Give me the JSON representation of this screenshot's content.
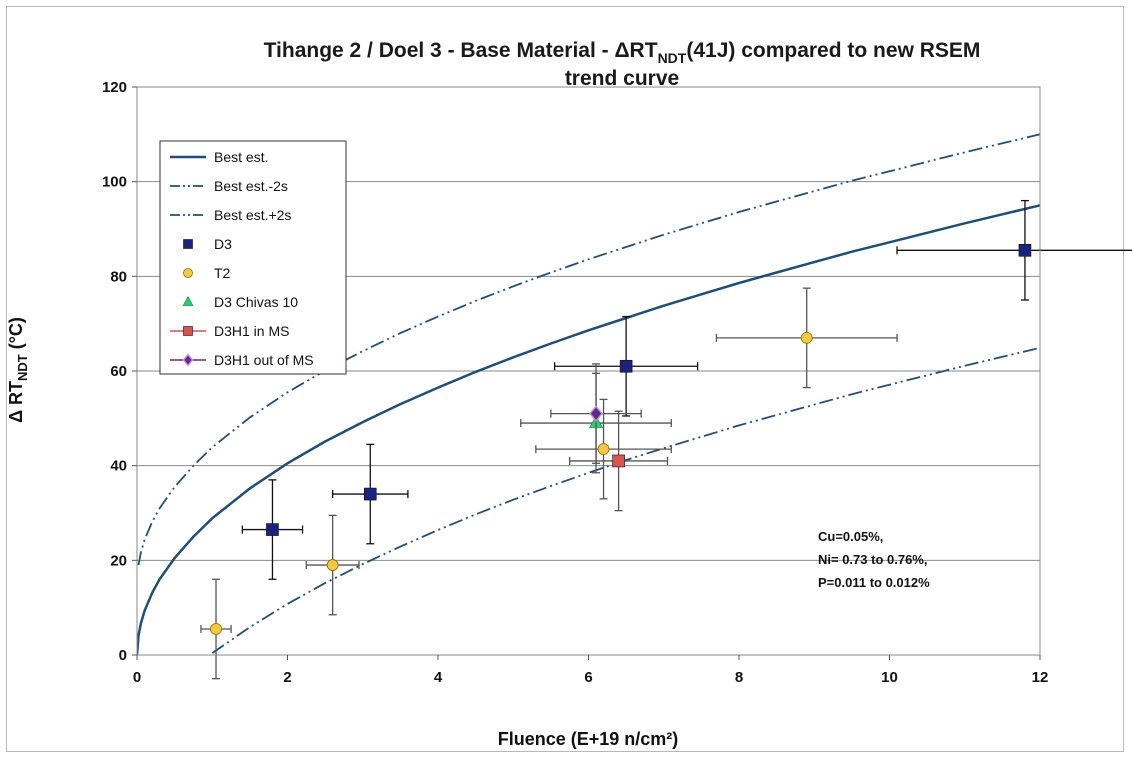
{
  "chart_data": {
    "type": "scatter",
    "title": {
      "prefix": "Tihange 2 / Doel 3 - Base Material - ΔRT",
      "sub": "NDT",
      "suffix": "(41J) compared to new RSEM",
      "line2": "trend curve"
    },
    "xlabel": "Fluence (E+19 n/cm²)",
    "ylabel": {
      "prefix": "Δ RT",
      "sub": "NDT",
      "suffix": " (°C)"
    },
    "xlim": [
      0,
      12
    ],
    "ylim": [
      0,
      120
    ],
    "xticks": [
      0,
      2,
      4,
      6,
      8,
      10,
      12
    ],
    "yticks": [
      0,
      20,
      40,
      60,
      80,
      100,
      120
    ],
    "grid": "horizontal",
    "legend_position": "top-left",
    "colors": {
      "curve": "#1f4e79",
      "D3": "#1a237e",
      "T2": "#f5c842",
      "D3 Chivas 10": "#2ecc71",
      "D3H1 in MS": "#d9534f",
      "D3H1 out of MS": "#5b2d8e"
    },
    "curves": [
      {
        "name": "Best est.",
        "style": "solid",
        "points": [
          [
            0,
            0
          ],
          [
            0.02,
            4.1
          ],
          [
            0.05,
            6.6
          ],
          [
            0.1,
            9.3
          ],
          [
            0.2,
            13.1
          ],
          [
            0.3,
            16.0
          ],
          [
            0.5,
            20.5
          ],
          [
            0.75,
            25.0
          ],
          [
            1,
            28.9
          ],
          [
            1.5,
            35.2
          ],
          [
            2,
            40.5
          ],
          [
            2.5,
            45.1
          ],
          [
            3,
            49.2
          ],
          [
            3.5,
            53.0
          ],
          [
            4,
            56.5
          ],
          [
            4.5,
            59.8
          ],
          [
            5,
            62.9
          ],
          [
            5.5,
            65.8
          ],
          [
            6,
            68.6
          ],
          [
            6.5,
            71.2
          ],
          [
            7,
            73.8
          ],
          [
            7.5,
            76.2
          ],
          [
            8,
            78.6
          ],
          [
            8.5,
            80.8
          ],
          [
            9,
            83.0
          ],
          [
            9.5,
            85.2
          ],
          [
            10,
            87.2
          ],
          [
            10.5,
            89.2
          ],
          [
            11,
            91.2
          ],
          [
            11.5,
            93.1
          ],
          [
            12,
            95.0
          ]
        ]
      },
      {
        "name": "Best est.-2s",
        "style": "dash-dot-dot",
        "points": [
          [
            1,
            0.4
          ],
          [
            1.5,
            5.9
          ],
          [
            2,
            10.8
          ],
          [
            2.5,
            15.2
          ],
          [
            3,
            19.2
          ],
          [
            3.5,
            22.9
          ],
          [
            4,
            26.4
          ],
          [
            4.5,
            29.7
          ],
          [
            5,
            32.8
          ],
          [
            5.5,
            35.7
          ],
          [
            6,
            38.5
          ],
          [
            6.5,
            41.2
          ],
          [
            7,
            43.7
          ],
          [
            7.5,
            46.1
          ],
          [
            8,
            48.5
          ],
          [
            8.5,
            50.7
          ],
          [
            9,
            52.9
          ],
          [
            9.5,
            55.1
          ],
          [
            10,
            57.1
          ],
          [
            10.5,
            59.1
          ],
          [
            11,
            61.1
          ],
          [
            11.5,
            63.0
          ],
          [
            12,
            64.9
          ]
        ]
      },
      {
        "name": "Best est.+2s",
        "style": "dash-dot-dot",
        "points": [
          [
            0.02,
            19.0
          ],
          [
            0.05,
            21.6
          ],
          [
            0.1,
            24.3
          ],
          [
            0.2,
            28.1
          ],
          [
            0.3,
            31.0
          ],
          [
            0.5,
            35.5
          ],
          [
            0.75,
            40.0
          ],
          [
            1,
            43.9
          ],
          [
            1.5,
            50.2
          ],
          [
            2,
            55.5
          ],
          [
            2.5,
            60.1
          ],
          [
            3,
            64.2
          ],
          [
            3.5,
            68.0
          ],
          [
            4,
            71.5
          ],
          [
            4.5,
            74.8
          ],
          [
            5,
            77.9
          ],
          [
            5.5,
            80.8
          ],
          [
            6,
            83.6
          ],
          [
            6.5,
            86.2
          ],
          [
            7,
            88.8
          ],
          [
            7.5,
            91.2
          ],
          [
            8,
            93.6
          ],
          [
            8.5,
            95.8
          ],
          [
            9,
            98.0
          ],
          [
            9.5,
            100.2
          ],
          [
            10,
            102.2
          ],
          [
            10.5,
            104.2
          ],
          [
            11,
            106.2
          ],
          [
            11.5,
            108.1
          ],
          [
            12,
            110.0
          ]
        ]
      }
    ],
    "series": [
      {
        "name": "D3",
        "marker": "square",
        "points": [
          {
            "x": 1.8,
            "y": 26.5,
            "xerr": 0.4,
            "yerr": 10.5
          },
          {
            "x": 3.1,
            "y": 34,
            "xerr": 0.5,
            "yerr": 10.5
          },
          {
            "x": 6.5,
            "y": 61,
            "xerr": 0.95,
            "yerr": 10.5
          },
          {
            "x": 11.8,
            "y": 85.5,
            "xerr": 1.7,
            "yerr": 10.5
          }
        ]
      },
      {
        "name": "T2",
        "marker": "circle",
        "points": [
          {
            "x": 1.05,
            "y": 5.5,
            "xerr": 0.2,
            "yerr": 10.5
          },
          {
            "x": 2.6,
            "y": 19,
            "xerr": 0.35,
            "yerr": 10.5
          },
          {
            "x": 6.2,
            "y": 43.5,
            "xerr": 0.9,
            "yerr": 10.5
          },
          {
            "x": 8.9,
            "y": 67,
            "xerr": 1.2,
            "yerr": 10.5
          }
        ]
      },
      {
        "name": "D3 Chivas 10",
        "marker": "triangle",
        "points": [
          {
            "x": 6.1,
            "y": 49,
            "xerr": 1.0,
            "yerr": 10.5
          }
        ]
      },
      {
        "name": "D3H1 in MS",
        "marker": "square",
        "points": [
          {
            "x": 6.4,
            "y": 41,
            "xerr": 0.65,
            "yerr": 10.5
          }
        ]
      },
      {
        "name": "D3H1 out of MS",
        "marker": "diamond",
        "points": [
          {
            "x": 6.1,
            "y": 51,
            "xerr": 0.6,
            "yerr": 10.5
          }
        ]
      }
    ],
    "annotation": [
      "Cu=0.05%,",
      "Ni= 0.73 to 0.76%,",
      "P=0.011 to 0.012%"
    ]
  }
}
